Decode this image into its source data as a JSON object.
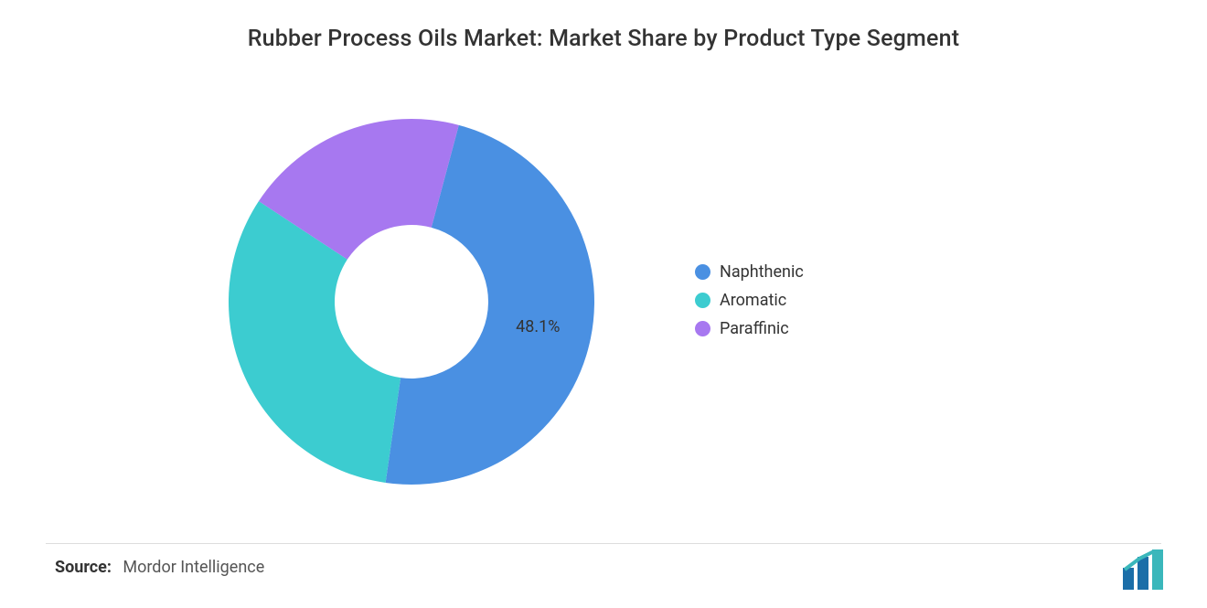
{
  "chart": {
    "type": "donut",
    "title": "Rubber Process Oils Market: Market Share by Product Type Segment",
    "title_fontsize": 25,
    "title_color": "#333333",
    "background_color": "#ffffff",
    "slices": [
      {
        "label": "Naphthenic",
        "value": 48.1,
        "color": "#4a90e2",
        "show_label": true,
        "label_text": "48.1%"
      },
      {
        "label": "Aromatic",
        "value": 32.0,
        "color": "#3cccd0",
        "show_label": false
      },
      {
        "label": "Paraffinic",
        "value": 19.9,
        "color": "#a778f0",
        "show_label": false
      }
    ],
    "inner_radius_ratio": 0.42,
    "outer_radius": 200,
    "start_angle_deg": -75,
    "slice_gap_deg": 0,
    "label_fontsize": 18,
    "label_color": "#333333",
    "legend": {
      "position": "right",
      "fontsize": 18,
      "dot_radius": 8.5,
      "text_color": "#333333"
    }
  },
  "source": {
    "label": "Source:",
    "text": "Mordor Intelligence",
    "fontsize": 18
  },
  "logo": {
    "name": "mordor-intelligence-logo",
    "bars": [
      "#1b6ea8",
      "#1b6ea8",
      "#3ab7bb"
    ],
    "accent": "#3ab7bb"
  },
  "divider_color": "#dddddd"
}
